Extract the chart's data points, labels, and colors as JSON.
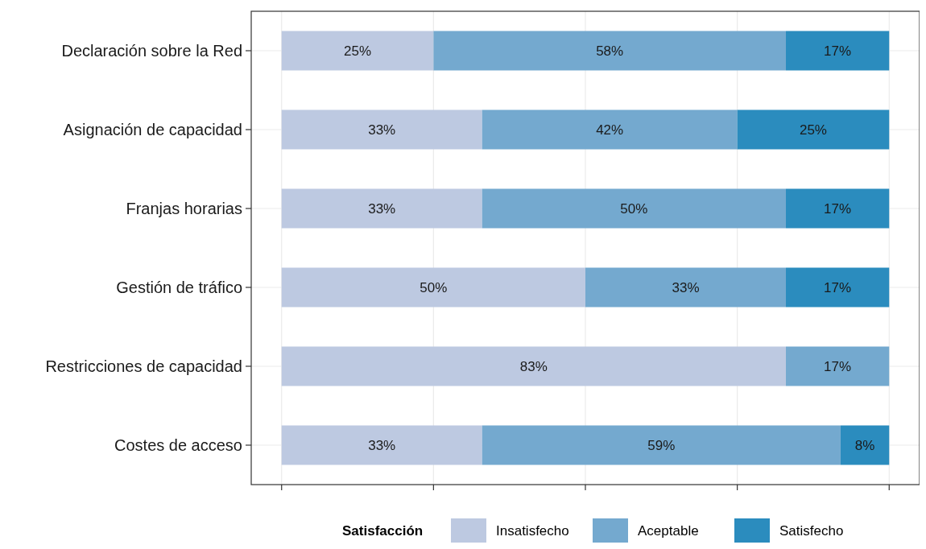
{
  "chart_data": {
    "type": "bar",
    "orientation": "horizontal",
    "stacked": true,
    "categories": [
      "Declaración sobre la Red",
      "Asignación de capacidad",
      "Franjas horarias",
      "Gestión de tráfico",
      "Restricciones de capacidad",
      "Costes de acceso"
    ],
    "series": [
      {
        "name": "Insatisfecho",
        "color": "#bdc9e1",
        "values": [
          25,
          33,
          33,
          50,
          83,
          33
        ],
        "value_labels": [
          "25%",
          "33%",
          "33%",
          "50%",
          "83%",
          "33%"
        ]
      },
      {
        "name": "Aceptable",
        "color": "#74a9cf",
        "values": [
          58,
          42,
          50,
          33,
          17,
          59
        ],
        "value_labels": [
          "58%",
          "42%",
          "50%",
          "33%",
          "17%",
          "59%"
        ]
      },
      {
        "name": "Satisfecho",
        "color": "#2b8cbe",
        "values": [
          17,
          25,
          17,
          17,
          null,
          8
        ],
        "value_labels": [
          "17%",
          "25%",
          "17%",
          "17%",
          null,
          "8%"
        ]
      }
    ],
    "xlim": [
      -5,
      105
    ],
    "xticks": [
      {
        "value": 0,
        "label": null
      },
      {
        "value": 25,
        "label": null
      },
      {
        "value": 50,
        "label": null
      },
      {
        "value": 75,
        "label": null
      },
      {
        "value": 100,
        "label": null
      }
    ],
    "tick_labels": "y",
    "grid": true,
    "legend": "bottom",
    "legend_title": "Satisfacción"
  }
}
